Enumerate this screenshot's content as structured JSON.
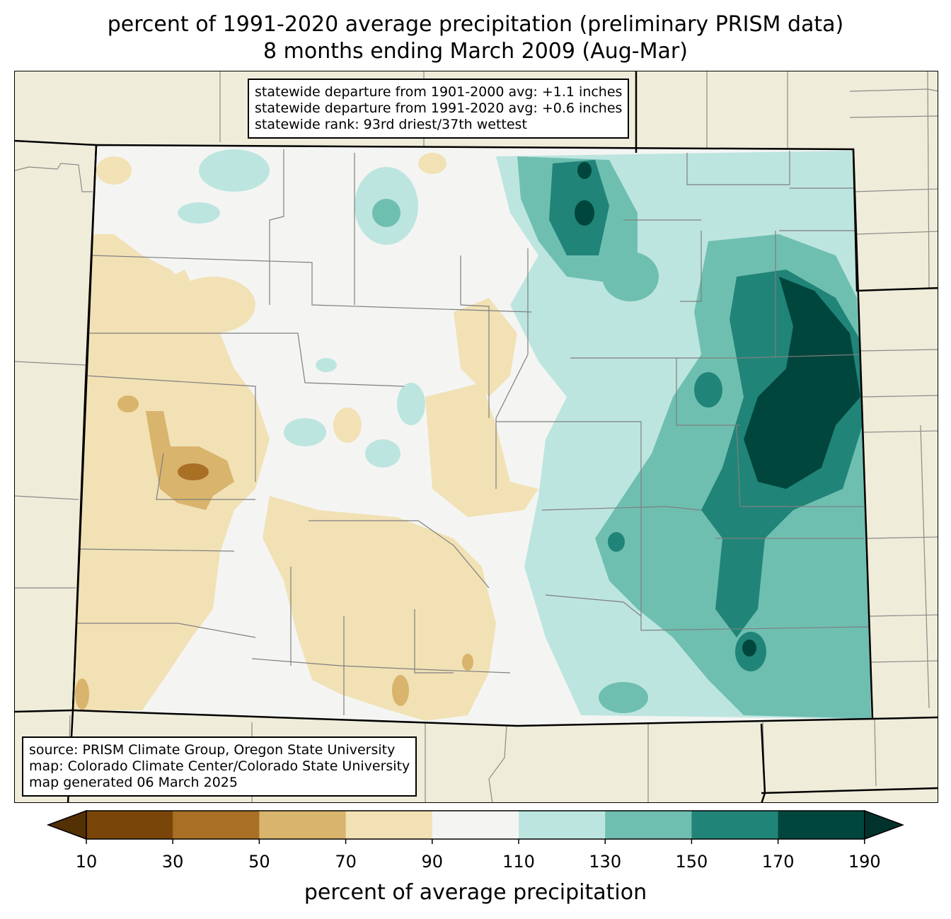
{
  "title_line1": "percent of 1991-2020 average precipitation (preliminary PRISM data)",
  "title_line2": "8 months ending March 2009 (Aug-Mar)",
  "stats": {
    "line1": "statewide departure from 1901-2000 avg: +1.1 inches",
    "line2": "statewide departure from 1991-2020 avg: +0.6 inches",
    "line3": "statewide rank: 93rd driest/37th wettest"
  },
  "source": {
    "line1": "source: PRISM Climate Group, Oregon State University",
    "line2": "map: Colorado Climate Center/Colorado State University",
    "line3": "map generated 06 March 2025"
  },
  "colorbar": {
    "label": "percent of average precipitation",
    "ticks": [
      "10",
      "30",
      "50",
      "70",
      "90",
      "110",
      "130",
      "150",
      "170",
      "190"
    ],
    "bins": [
      {
        "range": "<10",
        "color": "#543005"
      },
      {
        "range": "10-30",
        "color": "#7a4508"
      },
      {
        "range": "30-50",
        "color": "#a86f25"
      },
      {
        "range": "50-70",
        "color": "#d9b46c"
      },
      {
        "range": "70-90",
        "color": "#f1e1b5"
      },
      {
        "range": "90-110",
        "color": "#f4f5f3"
      },
      {
        "range": "110-130",
        "color": "#bde5df"
      },
      {
        "range": "130-150",
        "color": "#6fbfb1"
      },
      {
        "range": "150-170",
        "color": "#218478"
      },
      {
        "range": "170-190",
        "color": "#00463c"
      },
      {
        "range": ">190",
        "color": "#01332c"
      }
    ]
  },
  "colors": {
    "land_outside": "#efedd9",
    "county_lines": "#7f7f7f",
    "state_border": "#000000"
  }
}
